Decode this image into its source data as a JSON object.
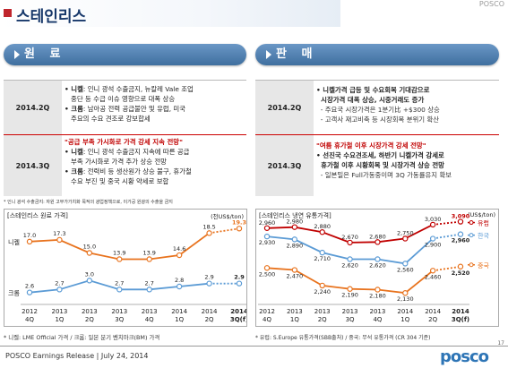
{
  "page": {
    "title": "스테인리스",
    "top_right": "POSCO"
  },
  "left": {
    "header": "원 료",
    "rows": [
      {
        "quarter": "2014.2Q",
        "lines": [
          {
            "parts": [
              {
                "t": "• 니켈",
                "s": "b"
              },
              {
                "t": ": 인니 광석 수출금지, 뉴칼레 Vale 조업"
              }
            ]
          },
          {
            "parts": [
              {
                "t": "   중단 등 수급 이슈 영향으로 대폭 상승"
              }
            ]
          },
          {
            "parts": [
              {
                "t": "• 크롬",
                "s": "b"
              },
              {
                "t": ": 남아공 전력 공급불안 및 유럽, 미국"
              }
            ]
          },
          {
            "parts": [
              {
                "t": "   주요의 수요 견조로 강보합세"
              }
            ]
          }
        ]
      },
      {
        "quarter": "2014.3Q",
        "lines": [
          {
            "parts": [
              {
                "t": "\"공급 부족 가시화로 가격 강세 지속 전망\"",
                "s": "red"
              }
            ]
          },
          {
            "parts": [
              {
                "t": "• 니켈",
                "s": "b"
              },
              {
                "t": ": 인니 광석 수출금지 지속에 따른 공급"
              }
            ]
          },
          {
            "parts": [
              {
                "t": "   부족 가시화로 가격 추가 상승 전망"
              }
            ]
          },
          {
            "parts": [
              {
                "t": "• 크롬",
                "s": "b"
              },
              {
                "t": ": 전력비 등 생산원가 상승 불구, 휴가철"
              }
            ]
          },
          {
            "parts": [
              {
                "t": "   수요 부진 및 중국 시황 약세로 보합"
              }
            ]
          }
        ]
      }
    ],
    "footnote": "* 인니 광석 수출금지: 자원 고부가가치화 목적의 광업정책으로, 이가공 원광의 수출을 금지",
    "chart": {
      "title": "[스테인리스 원료 가격]",
      "unit": "(천US$/ton)",
      "note": "* 니켈: LME Official 가격 / 크롬: 일본 분기 벤치마크(BM) 가격"
    }
  },
  "right": {
    "header": "판 매",
    "rows": [
      {
        "quarter": "2014.2Q",
        "lines": [
          {
            "parts": [
              {
                "t": "• 니켈가격 급등 및 수요회복 기대감으로",
                "s": "b"
              }
            ]
          },
          {
            "parts": [
              {
                "t": "  시장가격 대폭 상승, 시중거래도 증가",
                "s": "b"
              }
            ]
          },
          {
            "parts": [
              {
                "t": "  - 주요국 시장가격은 1분기比 +$300 상승",
                "s": "sub"
              }
            ]
          },
          {
            "parts": [
              {
                "t": "  - 고객사 재고비축 등 시장회복 분위기 확산",
                "s": "sub"
              }
            ]
          }
        ]
      },
      {
        "quarter": "2014.3Q",
        "lines": [
          {
            "parts": [
              {
                "t": "\"여름 휴가철 이후 시장가격 강세 전망\"",
                "s": "red"
              }
            ]
          },
          {
            "parts": [
              {
                "t": "• 선진국 수요견조세, 하반기 니켈가격 강세로",
                "s": "b"
              }
            ]
          },
          {
            "parts": [
              {
                "t": "  휴가철 이후 시황회복 및 시장가격 상승 전망",
                "s": "b"
              }
            ]
          },
          {
            "parts": [
              {
                "t": "  - 일본밀은 Full가동중이며 3Q 가동률유지 확보",
                "s": "sub"
              }
            ]
          }
        ]
      }
    ],
    "chart": {
      "title": "[스테인리스 냉연 유통가격]",
      "unit": "(US$/ton)",
      "note": "* 유럽: S.Europe 유통가격(SBB출처) / 중국: 무석 유통가격 (CR 304 기준)"
    }
  },
  "footer": {
    "text": "POSCO Earnings Release  | July 24, 2014",
    "logo": "posco",
    "page_number": "17"
  },
  "colors": {
    "orange": "#e8731e",
    "blue": "#5b9bd5",
    "red": "#c00000",
    "navy": "#17386a"
  },
  "chart_data": [
    {
      "type": "line",
      "title": "[스테인리스 원료 가격]",
      "unit": "(천US$/ton)",
      "categories": [
        [
          "2012",
          "4Q"
        ],
        [
          "2013",
          "1Q"
        ],
        [
          "2013",
          "2Q"
        ],
        [
          "2013",
          "3Q"
        ],
        [
          "2013",
          "4Q"
        ],
        [
          "2014",
          "1Q"
        ],
        [
          "2014",
          "2Q"
        ],
        [
          "2014",
          "3Q(f)"
        ]
      ],
      "series": [
        {
          "name": "니켈",
          "color": "#e8731e",
          "values": [
            17.0,
            17.3,
            15.0,
            13.9,
            13.9,
            14.6,
            18.5,
            19.3
          ],
          "labels": [
            "17.0",
            "17.3",
            "15.0",
            "13.9",
            "13.9",
            "14.6",
            "18.5",
            "19.3"
          ],
          "forecast_from": 6
        },
        {
          "name": "크롬",
          "color": "#5b9bd5",
          "values": [
            2.6,
            2.7,
            3.0,
            2.7,
            2.7,
            2.8,
            2.9,
            2.9
          ],
          "labels": [
            "2.6",
            "2.7",
            "3.0",
            "2.7",
            "2.7",
            "2.8",
            "2.9",
            "2.9"
          ],
          "forecast_from": 6
        }
      ],
      "legend": "inline-left"
    },
    {
      "type": "line",
      "title": "[스테인리스 냉연 유통가격]",
      "unit": "(US$/ton)",
      "categories": [
        [
          "2012",
          "4Q"
        ],
        [
          "2013",
          "1Q"
        ],
        [
          "2013",
          "2Q"
        ],
        [
          "2013",
          "3Q"
        ],
        [
          "2013",
          "4Q"
        ],
        [
          "2014",
          "1Q"
        ],
        [
          "2014",
          "2Q"
        ],
        [
          "2014",
          "3Q(f)"
        ]
      ],
      "series": [
        {
          "name": "유럽",
          "color": "#c00000",
          "values": [
            2960,
            2980,
            2880,
            2670,
            2680,
            2750,
            3030,
            3090
          ],
          "labels": [
            "2,960",
            "2,980",
            "2,880",
            "2,670",
            "2,680",
            "2,750",
            "3,030",
            "3,090"
          ],
          "forecast_from": 6
        },
        {
          "name": "한국",
          "color": "#5b9bd5",
          "values": [
            2930,
            2890,
            2710,
            2620,
            2620,
            2560,
            2900,
            2960
          ],
          "labels": [
            "2,930",
            "2,890",
            "2,710",
            "2,620",
            "2,620",
            "2,560",
            "2,900",
            "2,960"
          ],
          "forecast_from": 6
        },
        {
          "name": "중국",
          "color": "#e8731e",
          "values": [
            2500,
            2470,
            2240,
            2190,
            2180,
            2130,
            2460,
            2520
          ],
          "labels": [
            "2,500",
            "2,470",
            "2,240",
            "2,190",
            "2,180",
            "2,130",
            "2,460",
            "2,520"
          ],
          "forecast_from": 6
        }
      ],
      "legend": "inline-right"
    }
  ]
}
